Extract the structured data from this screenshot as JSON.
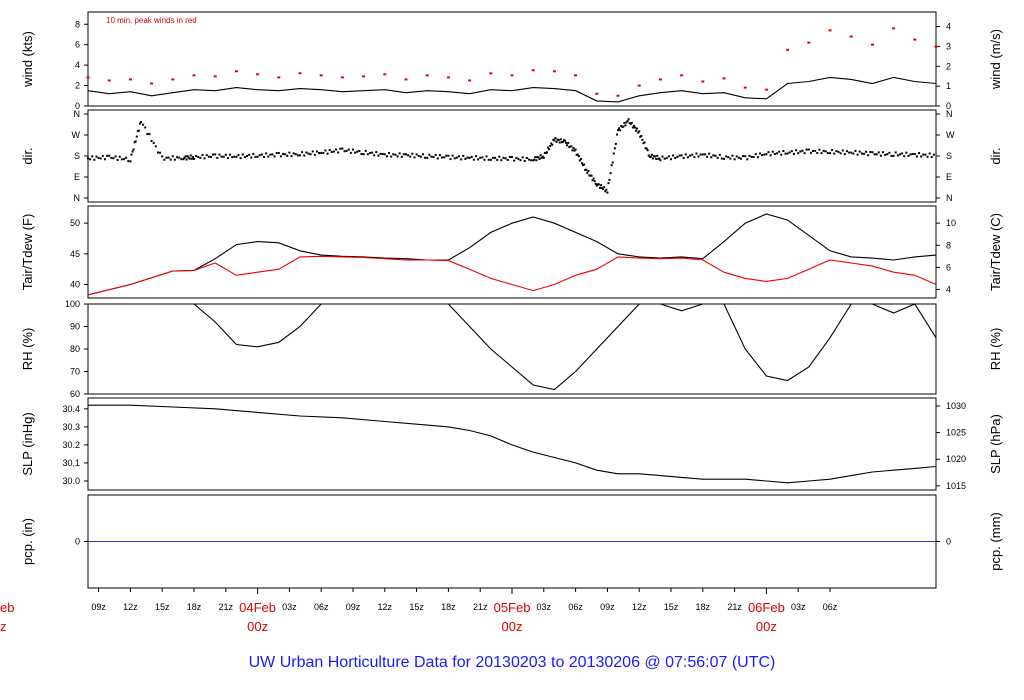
{
  "title": "UW Urban Horticulture Data for 20130203  to  20130206 @ 07:56:07  (UTC)",
  "x_ticks": [
    "09z",
    "12z",
    "15z",
    "18z",
    "21z",
    "03z",
    "06z",
    "09z",
    "12z",
    "15z",
    "18z",
    "21z",
    "03z",
    "06z",
    "09z",
    "12z",
    "15z",
    "18z",
    "21z",
    "03z",
    "06z"
  ],
  "day_labels": [
    {
      "date": "04Feb",
      "time": "00z"
    },
    {
      "date": "05Feb",
      "time": "00z"
    },
    {
      "date": "06Feb",
      "time": "00z"
    }
  ],
  "left_edge_labels": {
    "date": "eb",
    "time": "z"
  },
  "colors": {
    "primary": "#000000",
    "peak": "#dd0000",
    "dewpoint": "#ee0000",
    "precip": "#3333cc",
    "title": "#1a1aff",
    "day_label": "#dd0000"
  },
  "chart_data": [
    {
      "type": "line",
      "panel": "wind",
      "ylabel": "wind (kts)",
      "ylabel_right": "wind (m/s)",
      "annotation": "10 min. peak winds in red",
      "yticks": [
        0,
        2,
        4,
        6,
        8
      ],
      "yticks_right": [
        0,
        1,
        2,
        3,
        4
      ],
      "ylim": [
        0,
        9.2
      ],
      "series": [
        {
          "x_hours": [
            0,
            2,
            4,
            6,
            8,
            10,
            12,
            14,
            16,
            18,
            20,
            22,
            24,
            26,
            28,
            30,
            32,
            34,
            36,
            38,
            40,
            42,
            44,
            46,
            48,
            50,
            52,
            54,
            56,
            58,
            60,
            62,
            64,
            66,
            68,
            70,
            72,
            74,
            76,
            78,
            80
          ],
          "values": [
            1.5,
            1.2,
            1.4,
            1.0,
            1.3,
            1.6,
            1.5,
            1.8,
            1.6,
            1.5,
            1.7,
            1.6,
            1.4,
            1.5,
            1.6,
            1.3,
            1.5,
            1.4,
            1.2,
            1.6,
            1.5,
            1.8,
            1.7,
            1.5,
            0.5,
            0.4,
            1.0,
            1.3,
            1.5,
            1.2,
            1.3,
            0.8,
            0.7,
            2.2,
            2.4,
            2.8,
            2.6,
            2.2,
            2.8,
            2.4,
            2.2
          ]
        },
        {
          "x_hours": [
            0,
            2,
            4,
            6,
            8,
            10,
            12,
            14,
            16,
            18,
            20,
            22,
            24,
            26,
            28,
            30,
            32,
            34,
            36,
            38,
            40,
            42,
            44,
            46,
            48,
            50,
            52,
            54,
            56,
            58,
            60,
            62,
            64,
            66,
            68,
            70,
            72,
            74,
            76,
            78,
            80
          ],
          "values": [
            2.8,
            2.5,
            2.6,
            2.2,
            2.6,
            3.0,
            2.9,
            3.4,
            3.1,
            2.8,
            3.2,
            3.0,
            2.8,
            2.9,
            3.1,
            2.6,
            3.0,
            2.8,
            2.5,
            3.2,
            3.0,
            3.5,
            3.4,
            3.0,
            1.2,
            1.0,
            2.0,
            2.6,
            3.0,
            2.4,
            2.7,
            1.8,
            1.6,
            5.5,
            6.2,
            7.4,
            6.8,
            6.0,
            7.6,
            6.5,
            5.8
          ]
        }
      ]
    },
    {
      "type": "scatter",
      "panel": "dir",
      "ylabel": "dir.",
      "categories": [
        "N",
        "W",
        "S",
        "E",
        "N"
      ],
      "ylim": [
        0,
        360
      ],
      "x_hours": [
        0,
        2,
        4,
        5,
        7,
        9,
        10,
        12,
        14,
        16,
        18,
        20,
        22,
        24,
        26,
        28,
        30,
        32,
        34,
        36,
        38,
        40,
        42,
        43,
        44,
        45,
        46,
        47,
        48,
        49,
        50,
        51,
        52,
        53,
        54,
        56,
        58,
        60,
        62,
        64,
        66,
        68,
        70,
        72,
        74,
        76,
        78,
        80
      ],
      "values": [
        170,
        175,
        165,
        330,
        170,
        172,
        175,
        180,
        178,
        182,
        185,
        188,
        195,
        205,
        195,
        185,
        183,
        180,
        175,
        172,
        170,
        168,
        165,
        180,
        250,
        240,
        200,
        120,
        60,
        30,
        290,
        330,
        280,
        180,
        170,
        178,
        185,
        175,
        172,
        190,
        195,
        200,
        198,
        195,
        190,
        188,
        185,
        182
      ]
    },
    {
      "type": "line",
      "panel": "temp",
      "ylabel": "Tair/Tdew (F)",
      "ylabel_right": "Tair/Tdew (C)",
      "yticks": [
        40,
        45,
        50
      ],
      "yticks_right": [
        4,
        6,
        8,
        10
      ],
      "ylim": [
        37.8,
        52.8
      ],
      "series": [
        {
          "name": "Tair",
          "x_hours": [
            0,
            4,
            8,
            10,
            12,
            14,
            16,
            18,
            20,
            22,
            24,
            26,
            28,
            30,
            32,
            34,
            36,
            38,
            40,
            42,
            44,
            46,
            48,
            50,
            52,
            54,
            56,
            58,
            60,
            62,
            64,
            66,
            68,
            70,
            72,
            74,
            76,
            78,
            80
          ],
          "values": [
            38.3,
            40.0,
            42.2,
            42.3,
            44.2,
            46.5,
            47.0,
            46.8,
            45.5,
            44.8,
            44.6,
            44.5,
            44.3,
            44.2,
            44.0,
            44.0,
            46.0,
            48.5,
            50.0,
            51.0,
            50.0,
            48.5,
            47.0,
            45.0,
            44.5,
            44.3,
            44.5,
            44.2,
            47.0,
            50.0,
            51.5,
            50.5,
            48.0,
            45.5,
            44.5,
            44.3,
            44.0,
            44.5,
            44.8
          ]
        },
        {
          "name": "Tdew",
          "x_hours": [
            0,
            4,
            8,
            10,
            12,
            14,
            16,
            18,
            20,
            22,
            24,
            26,
            28,
            30,
            32,
            34,
            36,
            38,
            40,
            42,
            44,
            46,
            48,
            50,
            52,
            54,
            56,
            58,
            60,
            62,
            64,
            66,
            68,
            70,
            72,
            74,
            76,
            78,
            80
          ],
          "values": [
            38.3,
            40.0,
            42.2,
            42.3,
            43.5,
            41.5,
            42.0,
            42.5,
            44.5,
            44.6,
            44.5,
            44.4,
            44.2,
            44.0,
            44.0,
            43.9,
            42.5,
            41.0,
            40.0,
            39.0,
            40.0,
            41.5,
            42.5,
            44.5,
            44.3,
            44.2,
            44.3,
            44.0,
            42.0,
            41.0,
            40.5,
            41.0,
            42.5,
            44.0,
            43.5,
            43.0,
            42.0,
            41.5,
            40.0
          ]
        }
      ]
    },
    {
      "type": "line",
      "panel": "rh",
      "ylabel": "RH (%)",
      "yticks": [
        60,
        70,
        80,
        90,
        100
      ],
      "ylim": [
        60,
        100
      ],
      "x_hours": [
        0,
        6,
        10,
        12,
        14,
        16,
        18,
        20,
        22,
        24,
        26,
        28,
        30,
        32,
        34,
        36,
        38,
        40,
        42,
        44,
        46,
        48,
        50,
        52,
        54,
        56,
        58,
        60,
        62,
        64,
        66,
        68,
        70,
        72,
        74,
        76,
        78,
        80
      ],
      "values": [
        100,
        100,
        100,
        92,
        82,
        81,
        83,
        90,
        100,
        100,
        100,
        100,
        100,
        100,
        100,
        90,
        80,
        72,
        64,
        62,
        70,
        80,
        90,
        100,
        100,
        97,
        100,
        100,
        80,
        68,
        66,
        72,
        85,
        100,
        100,
        96,
        100,
        85
      ]
    },
    {
      "type": "line",
      "panel": "slp",
      "ylabel": "SLP (inHg)",
      "ylabel_right": "SLP (hPa)",
      "yticks": [
        30.0,
        30.1,
        30.2,
        30.3,
        30.4
      ],
      "yticks_right": [
        1015,
        1020,
        1025,
        1030
      ],
      "ylim": [
        29.95,
        30.46
      ],
      "x_hours": [
        0,
        4,
        8,
        12,
        16,
        20,
        24,
        28,
        32,
        34,
        36,
        38,
        40,
        42,
        44,
        46,
        48,
        50,
        52,
        54,
        56,
        58,
        60,
        62,
        64,
        66,
        68,
        70,
        72,
        74,
        76,
        78,
        80
      ],
      "values": [
        30.42,
        30.42,
        30.41,
        30.4,
        30.38,
        30.36,
        30.35,
        30.33,
        30.31,
        30.3,
        30.28,
        30.25,
        30.2,
        30.16,
        30.13,
        30.1,
        30.06,
        30.04,
        30.04,
        30.03,
        30.02,
        30.01,
        30.01,
        30.01,
        30.0,
        29.99,
        30.0,
        30.01,
        30.03,
        30.05,
        30.06,
        30.07,
        30.08
      ]
    },
    {
      "type": "line",
      "panel": "pcp",
      "ylabel": "pcp. (in)",
      "ylabel_right": "pcp. (mm)",
      "yticks": [
        0
      ],
      "yticks_right": [
        0
      ],
      "ylim": [
        -1,
        1
      ],
      "x_hours": [
        0,
        80
      ],
      "values": [
        0,
        0
      ]
    }
  ]
}
